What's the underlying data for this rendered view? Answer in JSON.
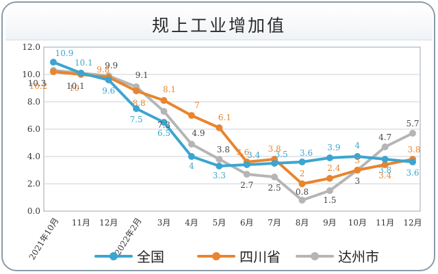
{
  "chart_data": {
    "type": "line",
    "title": "规上工业增加值",
    "categories": [
      "2021年10月",
      "11月",
      "12月",
      "2022年2月",
      "3月",
      "4月",
      "5月",
      "6月",
      "7月",
      "8月",
      "9月",
      "10月",
      "11月",
      "12月"
    ],
    "ylim": [
      0,
      12
    ],
    "yticks": [
      "0.0",
      "2.0",
      "4.0",
      "6.0",
      "8.0",
      "10.0",
      "12.0"
    ],
    "grid": true,
    "legend_position": "bottom",
    "series": [
      {
        "name": "全国",
        "color": "#3ba5cf",
        "values": [
          10.9,
          10.1,
          9.6,
          7.5,
          6.5,
          4.0,
          3.3,
          3.4,
          3.5,
          3.6,
          3.9,
          4.0,
          3.8,
          3.6
        ],
        "labels": [
          "10.9",
          "10.1",
          "9.6",
          "7.5",
          "6.5",
          "4",
          "3.3",
          "3.4",
          "3.5",
          "3.6",
          "3.9",
          "4",
          "3.8",
          "3.6"
        ]
      },
      {
        "name": "四川省",
        "color": "#e8852e",
        "values": [
          10.2,
          10.0,
          9.8,
          8.8,
          8.1,
          7.0,
          6.1,
          3.6,
          3.8,
          2.0,
          2.4,
          3.0,
          3.4,
          3.8
        ],
        "labels": [
          "10.2",
          "10",
          "9.8",
          "8.8",
          "8.1",
          "7",
          "6.1",
          "3.6",
          "3.8",
          "2",
          "2.4",
          "3",
          "3.4",
          "3.8"
        ]
      },
      {
        "name": "达州市",
        "color": "#b5b5b5",
        "values": [
          10.3,
          10.1,
          9.9,
          9.1,
          7.3,
          4.9,
          3.8,
          2.7,
          2.5,
          0.8,
          1.5,
          3.0,
          4.7,
          5.7
        ],
        "labels": [
          "10.3",
          "10.1",
          "9.9",
          "9.1",
          "7.3",
          "4.9",
          "3.8",
          "2.7",
          "2.5",
          "0.8",
          "1.5",
          "3",
          "4.7",
          "5.7"
        ]
      }
    ]
  }
}
